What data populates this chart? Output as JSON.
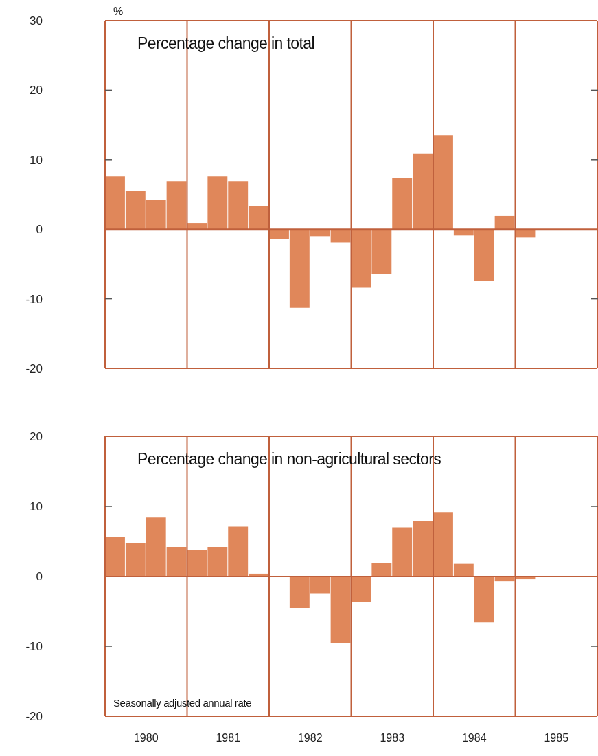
{
  "chart_data": [
    {
      "type": "bar",
      "title": "Percentage change in total",
      "ylabel": "%",
      "x": [
        1980.125,
        1980.375,
        1980.625,
        1980.875,
        1981.125,
        1981.375,
        1981.625,
        1981.875,
        1982.125,
        1982.375,
        1982.625,
        1982.875,
        1983.125,
        1983.375,
        1983.625,
        1983.875,
        1984.125,
        1984.375,
        1984.625,
        1984.875,
        1985.125
      ],
      "values": [
        7.6,
        5.5,
        4.2,
        6.9,
        0.9,
        7.6,
        6.9,
        3.3,
        -1.4,
        -11.3,
        -1.0,
        -1.9,
        -8.4,
        -6.4,
        7.4,
        10.9,
        13.5,
        -0.9,
        -7.4,
        1.9,
        -1.2
      ],
      "color": "#e0875a",
      "xlim": [
        1980,
        1986
      ],
      "ylim": [
        -20,
        30
      ],
      "yticks": [
        -20,
        -10,
        0,
        10,
        20,
        30
      ],
      "ref_lines": [
        {
          "axis": "y",
          "value": 0
        },
        {
          "axis": "x",
          "value": 1981
        },
        {
          "axis": "x",
          "value": 1982
        },
        {
          "axis": "x",
          "value": 1983
        },
        {
          "axis": "x",
          "value": 1984
        },
        {
          "axis": "x",
          "value": 1985
        }
      ],
      "tick_labels": "y"
    },
    {
      "type": "bar",
      "title": "Percentage change in non-agricultural sectors",
      "annotations": [
        "Seasonally adjusted annual rate"
      ],
      "x": [
        1980.125,
        1980.375,
        1980.625,
        1980.875,
        1981.125,
        1981.375,
        1981.625,
        1981.875,
        1982.125,
        1982.375,
        1982.625,
        1982.875,
        1983.125,
        1983.375,
        1983.625,
        1983.875,
        1984.125,
        1984.375,
        1984.625,
        1984.875,
        1985.125
      ],
      "values": [
        5.6,
        4.7,
        8.4,
        4.2,
        3.8,
        4.2,
        7.1,
        0.4,
        0,
        -4.5,
        -2.5,
        -9.5,
        -3.7,
        1.9,
        7.0,
        7.9,
        9.1,
        1.8,
        -6.6,
        -0.7,
        -0.4
      ],
      "color": "#e0875a",
      "xlim": [
        1980,
        1986
      ],
      "xticks": [
        {
          "value": 1980.5,
          "label": "1980"
        },
        {
          "value": 1981.5,
          "label": "1981"
        },
        {
          "value": 1982.5,
          "label": "1982"
        },
        {
          "value": 1983.5,
          "label": "1983"
        },
        {
          "value": 1984.5,
          "label": "1984"
        },
        {
          "value": 1985.5,
          "label": "1985"
        }
      ],
      "ylim": [
        -20,
        20
      ],
      "yticks": [
        -20,
        -10,
        0,
        10,
        20
      ],
      "ref_lines": [
        {
          "axis": "y",
          "value": 0
        },
        {
          "axis": "x",
          "value": 1981
        },
        {
          "axis": "x",
          "value": 1982
        },
        {
          "axis": "x",
          "value": 1983
        },
        {
          "axis": "x",
          "value": 1984
        },
        {
          "axis": "x",
          "value": 1985
        }
      ]
    }
  ]
}
